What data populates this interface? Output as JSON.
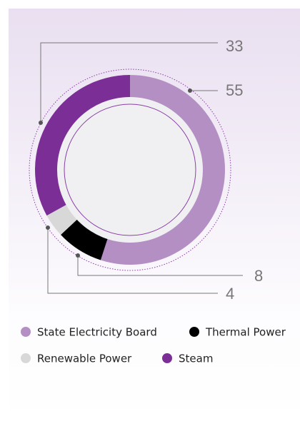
{
  "chart_data": {
    "type": "donut",
    "categories": [
      "State Electricity Board",
      "Thermal Power",
      "Renewable Power",
      "Steam"
    ],
    "values": [
      55,
      8,
      4,
      33
    ],
    "colors": [
      "#b48fc4",
      "#000000",
      "#d8d8d8",
      "#7b2f96"
    ]
  }
}
